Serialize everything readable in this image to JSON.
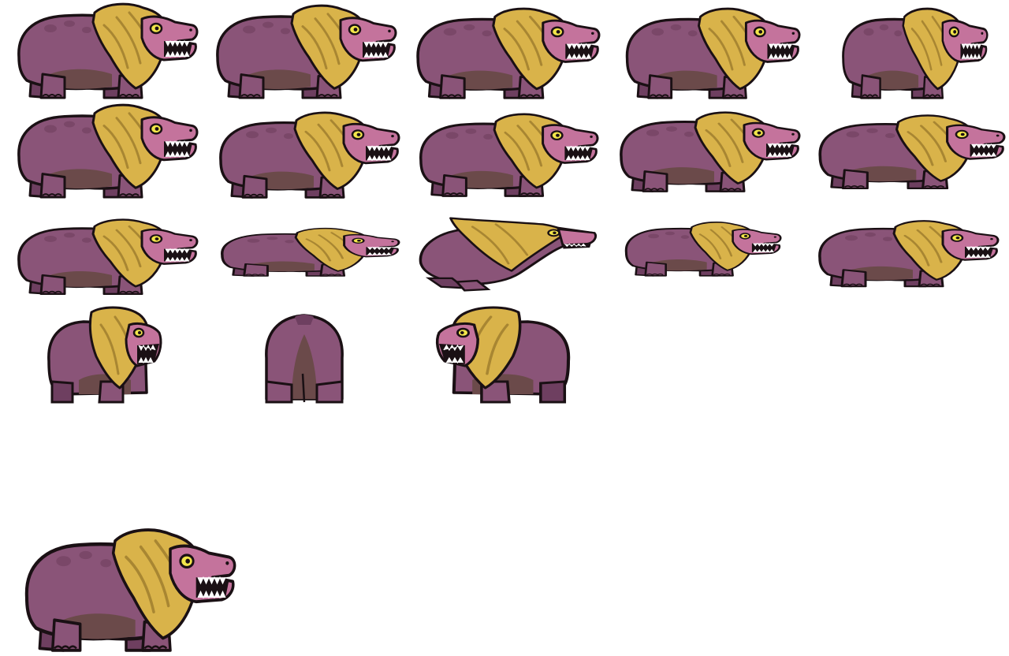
{
  "sheet": {
    "background": "#ffffff",
    "creature": {
      "body_color": "#8a5478",
      "body_shade": "#6e3f60",
      "belly_color": "#6b4a4a",
      "mane_color": "#d9b34a",
      "mane_shade": "#a88632",
      "snout_color": "#c4739c",
      "eye_color": "#f2e64a",
      "outline_color": "#1a1014",
      "teeth_color": "#ffffff"
    }
  },
  "frames": [
    {
      "pose": "side-idle"
    },
    {
      "pose": "side-idle"
    },
    {
      "pose": "side-idle"
    },
    {
      "pose": "side-idle"
    },
    {
      "pose": "side-idle"
    },
    {
      "pose": "side-walk"
    },
    {
      "pose": "side-walk"
    },
    {
      "pose": "side-walk"
    },
    {
      "pose": "side-walk"
    },
    {
      "pose": "side-walk"
    },
    {
      "pose": "side-crouch"
    },
    {
      "pose": "side-low"
    },
    {
      "pose": "side-lunge"
    },
    {
      "pose": "side-low"
    },
    {
      "pose": "side-crouch"
    },
    {
      "pose": "three-quarter-right"
    },
    {
      "pose": "back"
    },
    {
      "pose": "three-quarter-left"
    },
    {
      "pose": "portrait"
    }
  ]
}
